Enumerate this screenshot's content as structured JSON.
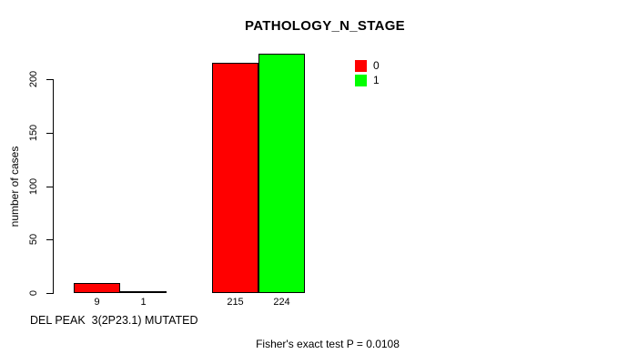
{
  "chart_data": {
    "type": "bar",
    "title": "PATHOLOGY_N_STAGE",
    "ylabel": "number of cases",
    "xlabel": "DEL PEAK  3(2P23.1) MUTATED",
    "annotation": "Fisher's exact test P = 0.0108",
    "ylim": [
      0,
      200
    ],
    "yticks": [
      0,
      50,
      100,
      150,
      200
    ],
    "grid": false,
    "legend_position": "top-right",
    "legend": [
      {
        "label": "0",
        "color": "#ff0000"
      },
      {
        "label": "1",
        "color": "#00ff00"
      }
    ],
    "groups": [
      {
        "values": [
          9,
          1
        ],
        "value_labels": [
          "9",
          "1"
        ]
      },
      {
        "values": [
          215,
          224
        ],
        "value_labels": [
          "215",
          "224"
        ]
      }
    ]
  }
}
